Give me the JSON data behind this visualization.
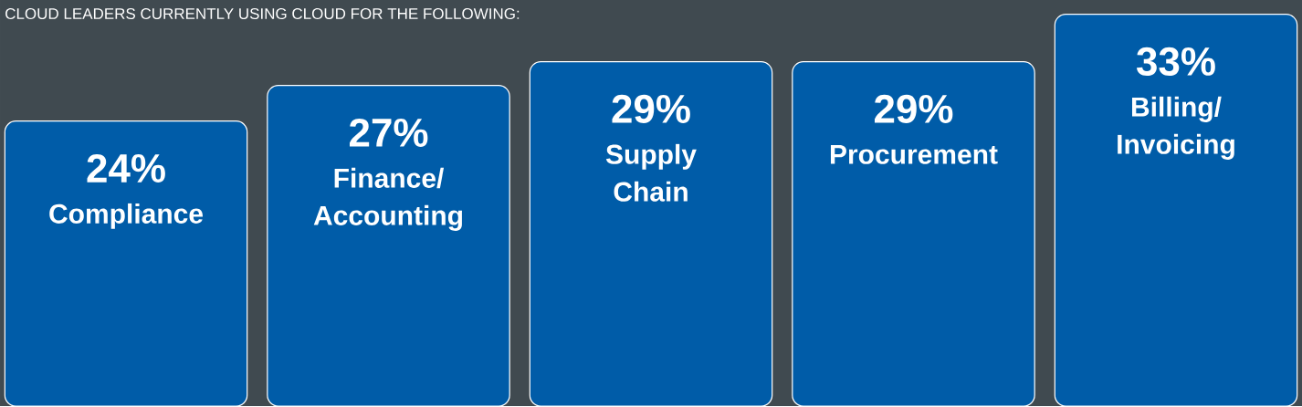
{
  "chart_data": {
    "type": "bar",
    "title": "CLOUD LEADERS CURRENTLY USING CLOUD FOR THE FOLLOWING:",
    "categories": [
      "Compliance",
      "Finance/ Accounting",
      "Supply Chain",
      "Procurement",
      "Billing/ Invoicing"
    ],
    "values": [
      24,
      27,
      29,
      29,
      33
    ],
    "value_labels": [
      "24%",
      "27%",
      "29%",
      "29%",
      "33%"
    ],
    "color": "#005ca8",
    "ylim": [
      0,
      34.2
    ]
  }
}
